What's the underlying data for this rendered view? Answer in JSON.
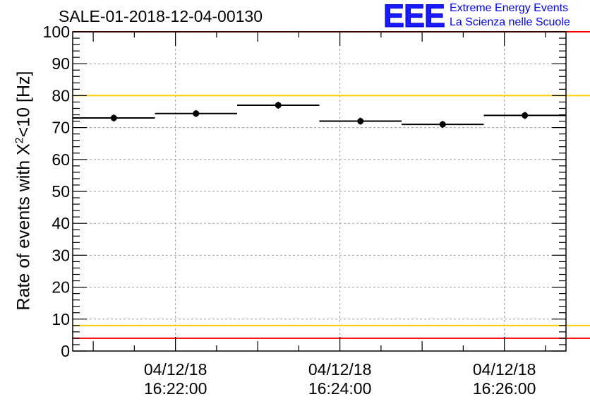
{
  "chart_data": {
    "type": "scatter",
    "title": "SALE-01-2018-12-04-00130",
    "ylabel_prefix": "Rate of events with X",
    "ylabel_sup": "2",
    "ylabel_suffix": "<10 [Hz]",
    "xlabel": "",
    "ylim": [
      0,
      100
    ],
    "yticks": [
      "0",
      "10",
      "20",
      "30",
      "40",
      "50",
      "60",
      "70",
      "80",
      "90",
      "100"
    ],
    "xticks": [
      {
        "date": "04/12/18",
        "time": "16:22:00"
      },
      {
        "date": "04/12/18",
        "time": "16:24:00"
      },
      {
        "date": "04/12/18",
        "time": "16:26:00"
      }
    ],
    "grid": true,
    "x_start": "16:20:45",
    "x_end": "16:26:45",
    "points": [
      {
        "x_from": "16:20:45",
        "x_to": "16:21:45",
        "y": 73.0
      },
      {
        "x_from": "16:21:45",
        "x_to": "16:22:45",
        "y": 74.4
      },
      {
        "x_from": "16:22:45",
        "x_to": "16:23:45",
        "y": 77.0
      },
      {
        "x_from": "16:23:45",
        "x_to": "16:24:45",
        "y": 72.0
      },
      {
        "x_from": "16:24:45",
        "x_to": "16:25:45",
        "y": 71.0
      },
      {
        "x_from": "16:25:45",
        "x_to": "16:26:45",
        "y": 73.8
      }
    ],
    "reference_lines": [
      {
        "y": 80,
        "color": "#ffcc00"
      },
      {
        "y": 8,
        "color": "#ffcc00"
      },
      {
        "y": 100,
        "color": "#ff0000"
      },
      {
        "y": 4,
        "color": "#ff0000"
      }
    ]
  },
  "logo": {
    "mark": "EEE",
    "line1": "Extreme Energy Events",
    "line2": "La Scienza nelle Scuole"
  }
}
